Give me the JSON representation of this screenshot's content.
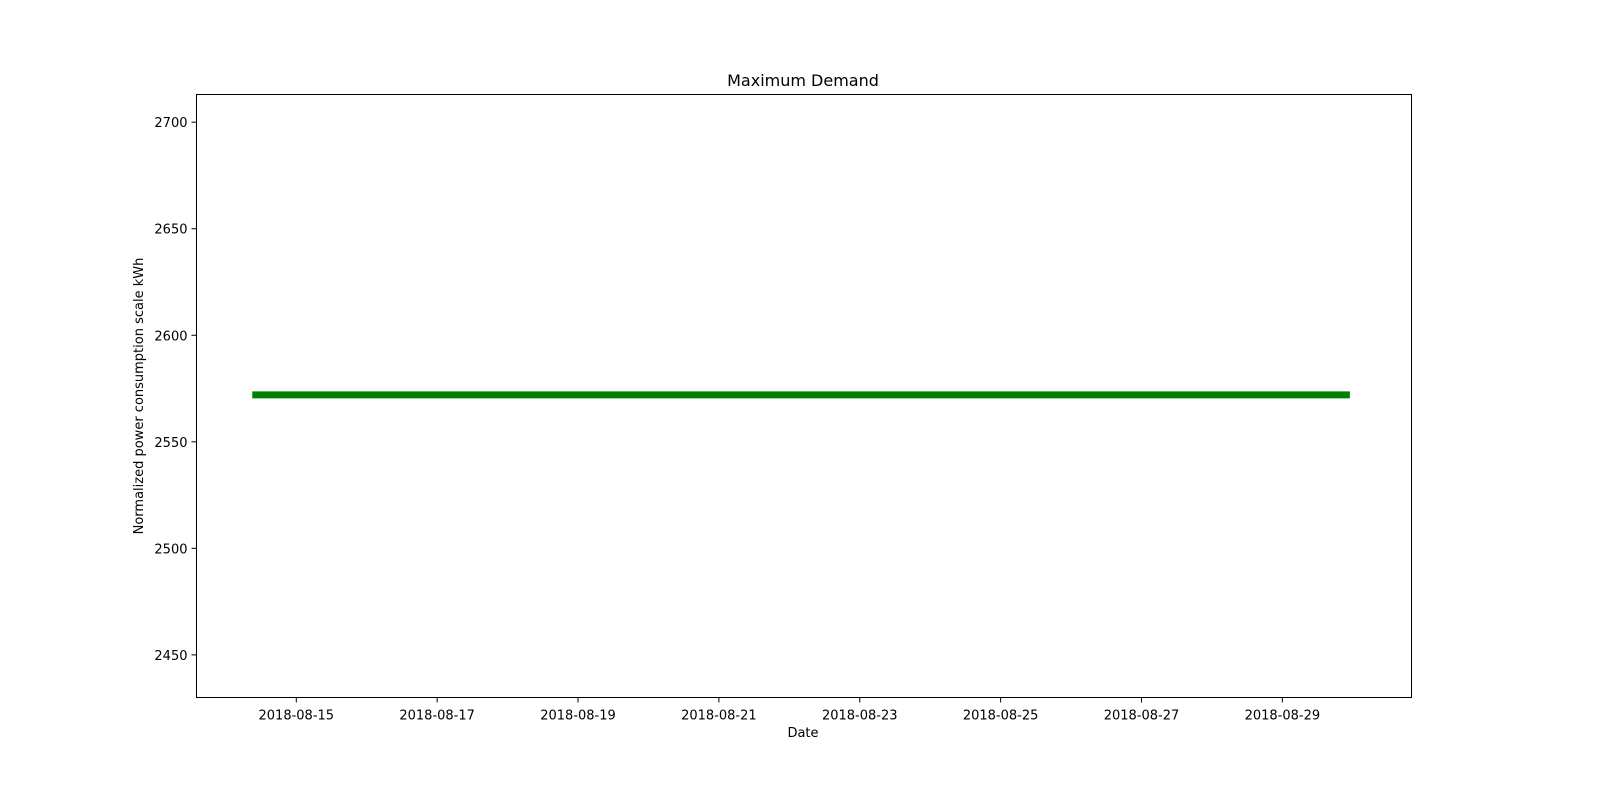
{
  "chart_data": {
    "type": "line",
    "title": "Maximum Demand",
    "xlabel": "Date",
    "ylabel": "Normalized power consumption scale kWh",
    "x_axis_type": "date",
    "xlim": [
      "2018-08-13T14:00",
      "2018-08-30T20:00"
    ],
    "ylim": [
      2430,
      2713
    ],
    "x_ticks": [
      "2018-08-15",
      "2018-08-17",
      "2018-08-19",
      "2018-08-21",
      "2018-08-23",
      "2018-08-25",
      "2018-08-27",
      "2018-08-29"
    ],
    "y_ticks": [
      2450,
      2500,
      2550,
      2600,
      2650,
      2700
    ],
    "grid": false,
    "series": [
      {
        "color": "#008000",
        "x": [
          "2018-08-14T09:00",
          "2018-08-29T23:00"
        ],
        "values": [
          2572,
          2572
        ]
      }
    ]
  }
}
